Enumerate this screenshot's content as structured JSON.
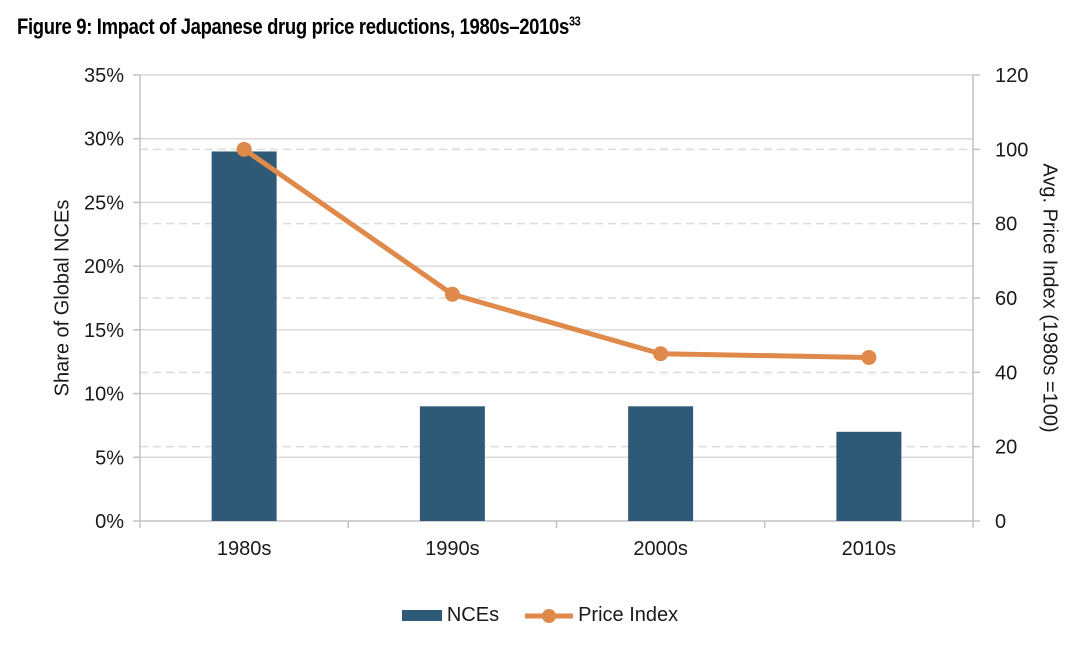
{
  "page": {
    "title": "Figure 9: Impact of Japanese drug price reductions, 1980s–2010s",
    "title_superscript": "33"
  },
  "chart_data": {
    "type": "bar+line combo",
    "categories": [
      "1980s",
      "1990s",
      "2000s",
      "2010s"
    ],
    "series": [
      {
        "name": "NCEs",
        "type": "bar",
        "axis": "left",
        "values": [
          29,
          9,
          9,
          7
        ],
        "color": "#2E5A78"
      },
      {
        "name": "Price Index",
        "type": "line",
        "axis": "right",
        "values": [
          100,
          61,
          45,
          44
        ],
        "color": "#DF8A4A"
      }
    ],
    "left_axis": {
      "label": "Share of Global NCEs",
      "min": 0,
      "max": 35,
      "step": 5,
      "tick_labels": [
        "0%",
        "5%",
        "10%",
        "15%",
        "20%",
        "25%",
        "30%",
        "35%"
      ],
      "gridline_style": "solid"
    },
    "right_axis": {
      "label": "Avg. Price Index (1980s =100)",
      "min": 0,
      "max": 120,
      "step": 20,
      "tick_labels": [
        "0",
        "20",
        "40",
        "60",
        "80",
        "100",
        "120"
      ],
      "gridline_style": "dashed"
    },
    "legend_position": "bottom"
  },
  "style": {
    "bar_color": "#2E5A78",
    "line_color": "#DF8A4A",
    "gridline_color": "#d9d9d9",
    "dashed_gridline_color": "#dcdcdc",
    "axis_line_color": "#c2c2c2",
    "text_color": "#1a1a1a"
  }
}
